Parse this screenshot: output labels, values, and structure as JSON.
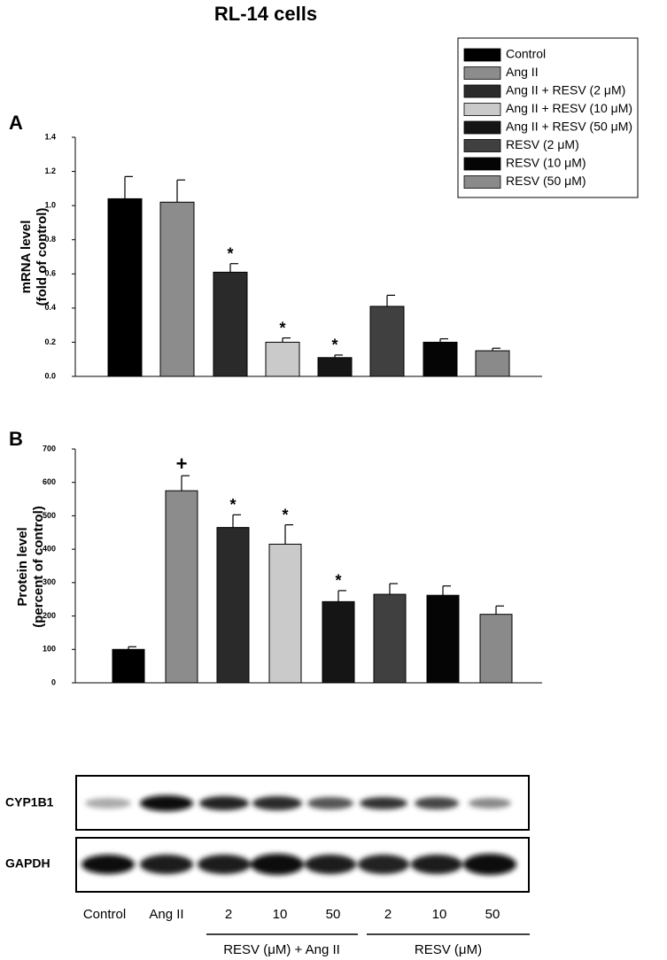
{
  "title": "RL-14 cells",
  "legend": {
    "entries": [
      {
        "name": "Control",
        "color": "#000000"
      },
      {
        "name": "Ang II",
        "color": "#8c8c8c"
      },
      {
        "name": "Ang II + RESV (2 μM)",
        "color": "#2a2a2a"
      },
      {
        "name": "Ang II + RESV (10 μM)",
        "color": "#cacaca"
      },
      {
        "name": "Ang II + RESV (50 μM)",
        "color": "#151515"
      },
      {
        "name": "RESV (2 μM)",
        "color": "#404040"
      },
      {
        "name": "RESV (10 μM)",
        "color": "#050505"
      },
      {
        "name": "RESV (50 μM)",
        "color": "#8a8a8a"
      }
    ]
  },
  "chart_data": [
    {
      "type": "bar",
      "panel": "A",
      "y_label": [
        "mRNA level",
        "(fold of control)"
      ],
      "values": [
        1.04,
        1.02,
        0.61,
        0.2,
        0.11,
        0.41,
        0.2,
        0.15
      ],
      "errors": [
        0.13,
        0.13,
        0.05,
        0.025,
        0.015,
        0.065,
        0.02,
        0.015
      ],
      "annotations": [
        null,
        null,
        "*",
        "*",
        "*",
        null,
        null,
        null
      ],
      "ylim": [
        0,
        1.4
      ],
      "yticks": [
        {
          "value": 0,
          "label": "0.0"
        },
        0.2,
        0.4,
        0.6,
        0.8,
        {
          "value": 1,
          "label": "1.0"
        },
        1.2,
        1.4
      ]
    },
    {
      "type": "bar",
      "panel": "B",
      "y_label": [
        "Protein level",
        "(percent of control)"
      ],
      "values": [
        100,
        575,
        465,
        415,
        243,
        265,
        262,
        205
      ],
      "errors": [
        8,
        45,
        38,
        58,
        33,
        32,
        28,
        25
      ],
      "annotations": [
        null,
        "+",
        "*",
        "*",
        "*",
        null,
        null,
        null
      ],
      "ylim": [
        0,
        700
      ],
      "yticks": [
        0,
        100,
        200,
        300,
        400,
        500,
        600,
        700
      ]
    }
  ],
  "blot": {
    "rows": [
      "CYP1B1",
      "GAPDH"
    ],
    "lanes": [
      "Control",
      "Ang II",
      "2",
      "10",
      "50",
      "2",
      "10",
      "50"
    ],
    "groups": [
      "RESV (μM) + Ang II",
      "RESV (μM)"
    ]
  }
}
